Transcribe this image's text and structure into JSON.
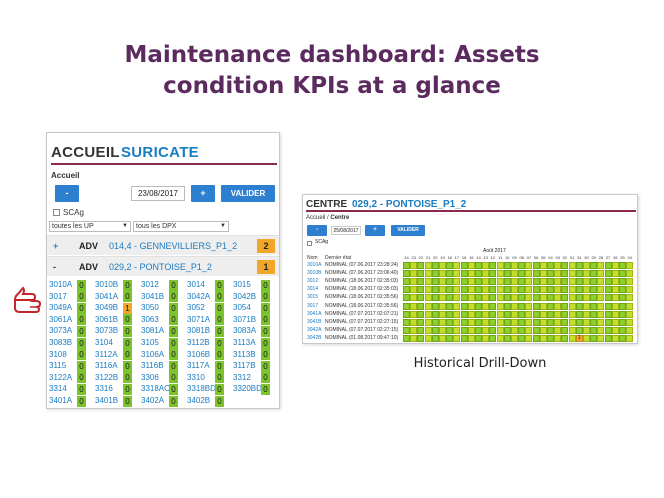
{
  "headline": {
    "line1": "Maintenance dashboard: Assets",
    "line2": "condition KPIs at a glance"
  },
  "left_panel": {
    "title_prefix": "ACCUEIL",
    "title_brand": "SURICATE",
    "section": "Accueil",
    "prev_label": "-",
    "date": "23/08/2017",
    "next_label": "+",
    "validate_label": "VALIDER",
    "scag_label": "SCAg",
    "filter_up": "toutes les UP",
    "filter_dpx": "tous les DPX",
    "rows": [
      {
        "bullet": "+",
        "code": "ADV",
        "site": "014,4 - GENNEVILLIERS_P1_2",
        "badge": "2"
      },
      {
        "bullet": "-",
        "code": "ADV",
        "site": "029,2 - PONTOISE_P1_2",
        "badge": "1"
      }
    ],
    "grid": [
      [
        [
          "3010A",
          "0"
        ],
        [
          "3010B",
          "0"
        ],
        [
          "3012",
          "0"
        ],
        [
          "3014",
          "0"
        ],
        [
          "3015",
          "0"
        ]
      ],
      [
        [
          "3017",
          "0"
        ],
        [
          "3041A",
          "0"
        ],
        [
          "3041B",
          "0"
        ],
        [
          "3042A",
          "0"
        ],
        [
          "3042B",
          "0"
        ]
      ],
      [
        [
          "3049A",
          "0"
        ],
        [
          "3049B",
          "1"
        ],
        [
          "3050",
          "0"
        ],
        [
          "3052",
          "0"
        ],
        [
          "3054",
          "0"
        ]
      ],
      [
        [
          "3061A",
          "0"
        ],
        [
          "3061B",
          "0"
        ],
        [
          "3063",
          "0"
        ],
        [
          "3071A",
          "0"
        ],
        [
          "3071B",
          "0"
        ]
      ],
      [
        [
          "3073A",
          "0"
        ],
        [
          "3073B",
          "0"
        ],
        [
          "3081A",
          "0"
        ],
        [
          "3081B",
          "0"
        ],
        [
          "3083A",
          "0"
        ]
      ],
      [
        [
          "3083B",
          "0"
        ],
        [
          "3104",
          "0"
        ],
        [
          "3105",
          "0"
        ],
        [
          "3112B",
          "0"
        ],
        [
          "3113A",
          "0"
        ]
      ],
      [
        [
          "3108",
          "0"
        ],
        [
          "3112A",
          "0"
        ],
        [
          "3106A",
          "0"
        ],
        [
          "3106B",
          "0"
        ],
        [
          "3113B",
          "0"
        ]
      ],
      [
        [
          "3115",
          "0"
        ],
        [
          "3116A",
          "0"
        ],
        [
          "3116B",
          "0"
        ],
        [
          "3117A",
          "0"
        ],
        [
          "3117B",
          "0"
        ]
      ],
      [
        [
          "3122A",
          "0"
        ],
        [
          "3122B",
          "0"
        ],
        [
          "3306",
          "0"
        ],
        [
          "3310",
          "0"
        ],
        [
          "3312",
          "0"
        ]
      ],
      [
        [
          "3314",
          "0"
        ],
        [
          "3316",
          "0"
        ],
        [
          "3318AC",
          "0"
        ],
        [
          "3318BD",
          "0"
        ],
        [
          "3320BD",
          "0"
        ]
      ],
      [
        [
          "3401A",
          "0"
        ],
        [
          "3401B",
          "0"
        ],
        [
          "3402A",
          "0"
        ],
        [
          "3402B",
          "0"
        ],
        [
          "",
          ""
        ]
      ]
    ]
  },
  "right_panel": {
    "title_prefix": "CENTRE",
    "title_site": "029,2 - PONTOISE_P1_2",
    "crumb_a": "Accueil",
    "crumb_sep": "/",
    "crumb_b": "Centre",
    "prev_label": "-",
    "date": "25/08/2017",
    "next_label": "+",
    "validate_label": "VALIDER",
    "scag_label": "SCAg",
    "month_label": "Août 2017",
    "col_appareil": "Nom",
    "col_state": "Dernier état",
    "days": [
      "24",
      "23",
      "22",
      "21",
      "20",
      "19",
      "18",
      "17",
      "16",
      "15",
      "14",
      "13",
      "12",
      "11",
      "10",
      "09",
      "08",
      "07",
      "06",
      "05",
      "04",
      "03",
      "02",
      "01",
      "31",
      "30",
      "29",
      "28",
      "27",
      "26",
      "25",
      "24"
    ],
    "rows": [
      {
        "code": "3010A",
        "state": "NOMINAL (07.06.2017 23:28:24)"
      },
      {
        "code": "3010B",
        "state": "NOMINAL (07.06.2017 23:06:40)"
      },
      {
        "code": "3012",
        "state": "NOMINAL (18.06.2017 02:35:03)"
      },
      {
        "code": "3014",
        "state": "NOMINAL (18.06.2017 02:35:03)"
      },
      {
        "code": "3015",
        "state": "NOMINAL (18.06.2017 02:35:56)"
      },
      {
        "code": "3017",
        "state": "NOMINAL (18.06.2017 02:35:56)"
      },
      {
        "code": "3041A",
        "state": "NOMINAL (07.07.2017 02:07:21)"
      },
      {
        "code": "3041B",
        "state": "NOMINAL (07.07.2017 02:27:15)"
      },
      {
        "code": "3042A",
        "state": "NOMINAL (07.07.2017 02:27:15)"
      },
      {
        "code": "3042B",
        "state": "NOMINAL (01.08.2017 09:47:10)"
      }
    ],
    "alert_value": "1"
  },
  "caption": "Historical Drill-Down",
  "colors": {
    "headline": "#5b2a5e",
    "brand_blue": "#1a7cc1",
    "button_blue": "#2f7fd0",
    "ok_green": "#7cc42c",
    "alert_orange": "#f0a628",
    "accent_line": "#8b2a4a"
  }
}
